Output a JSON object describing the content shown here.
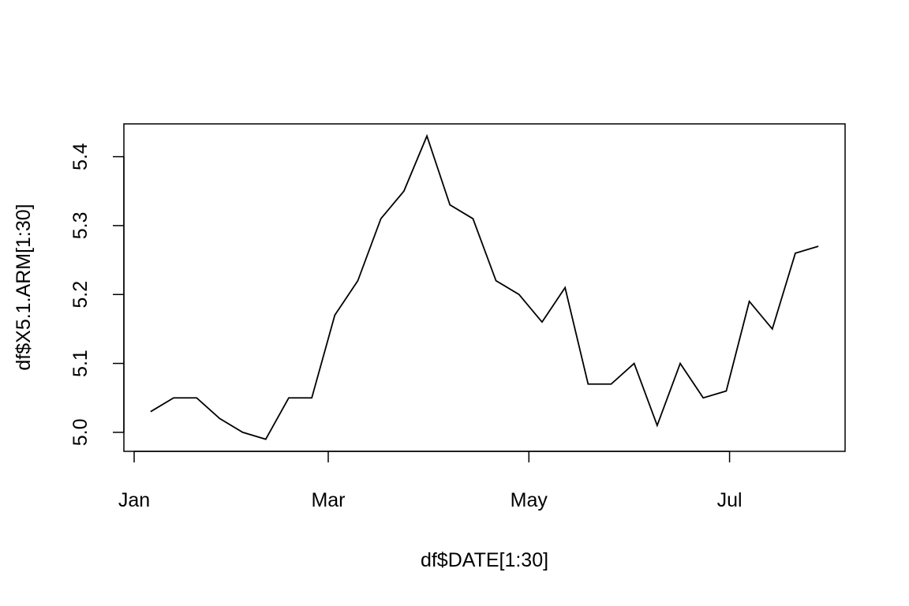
{
  "chart_data": {
    "type": "line",
    "xlabel": "df$DATE[1:30]",
    "ylabel": "df$X5.1.ARM[1:30]",
    "x": [
      6,
      13,
      20,
      27,
      34,
      41,
      48,
      55,
      62,
      69,
      76,
      83,
      90,
      97,
      104,
      111,
      118,
      125,
      132,
      139,
      146,
      153,
      160,
      167,
      174,
      181,
      188,
      195,
      202,
      209
    ],
    "values": [
      5.03,
      5.05,
      5.05,
      5.02,
      5.0,
      4.99,
      5.05,
      5.05,
      5.17,
      5.22,
      5.31,
      5.35,
      5.43,
      5.33,
      5.31,
      5.22,
      5.2,
      5.16,
      5.21,
      5.07,
      5.07,
      5.1,
      5.01,
      5.1,
      5.05,
      5.06,
      5.19,
      5.15,
      5.26,
      5.27
    ],
    "color": "#000000",
    "xlim": [
      -2.12,
      217.12
    ],
    "xticks": [
      {
        "value": 1,
        "label": "Jan"
      },
      {
        "value": 60,
        "label": "Mar"
      },
      {
        "value": 121,
        "label": "May"
      },
      {
        "value": 182,
        "label": "Jul"
      }
    ],
    "ylim": [
      4.9724,
      5.4476
    ],
    "yticks": [
      {
        "value": 5.0,
        "label": "5.0"
      },
      {
        "value": 5.1,
        "label": "5.1"
      },
      {
        "value": 5.2,
        "label": "5.2"
      },
      {
        "value": 5.3,
        "label": "5.3"
      },
      {
        "value": 5.4,
        "label": "5.4"
      }
    ],
    "grid": false
  }
}
